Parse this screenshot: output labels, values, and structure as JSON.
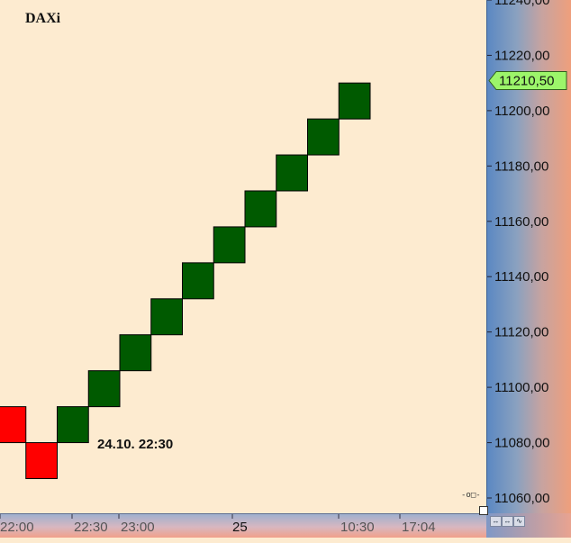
{
  "symbol": "DAXi",
  "annotation": "24.10. 22:30",
  "last_price": "11210,50",
  "colors": {
    "up_box": "#005a00",
    "down_box": "#ff0000",
    "price_marker": "#9cf56a"
  },
  "icons": [
    "link-icon",
    "resize-handle-icon",
    "scroll-left-icon",
    "scroll-right-icon",
    "chart-type-icon"
  ],
  "chart_data": {
    "type": "point-and-figure",
    "box_size": 20,
    "y_ticks": [
      "11240,00",
      "11220,00",
      "11200,00",
      "11180,00",
      "11160,00",
      "11140,00",
      "11120,00",
      "11100,00",
      "11080,00",
      "11060,00"
    ],
    "y_tick_values": [
      11240,
      11220,
      11200,
      11180,
      11160,
      11140,
      11120,
      11100,
      11080,
      11060
    ],
    "x_ticks": [
      "22:00",
      "22:30",
      "23:00",
      "25",
      "10:30",
      "17:04"
    ],
    "ylim": [
      11053,
      11242
    ],
    "columns": [
      {
        "direction": "down",
        "low": 11080,
        "high": 11093
      },
      {
        "direction": "down",
        "low": 11067,
        "high": 11080
      },
      {
        "direction": "up",
        "low": 11080,
        "high": 11093
      },
      {
        "direction": "up",
        "low": 11093,
        "high": 11106
      },
      {
        "direction": "up",
        "low": 11106,
        "high": 11119
      },
      {
        "direction": "up",
        "low": 11119,
        "high": 11132
      },
      {
        "direction": "up",
        "low": 11132,
        "high": 11145
      },
      {
        "direction": "up",
        "low": 11145,
        "high": 11158
      },
      {
        "direction": "up",
        "low": 11158,
        "high": 11171
      },
      {
        "direction": "up",
        "low": 11171,
        "high": 11184
      },
      {
        "direction": "up",
        "low": 11184,
        "high": 11197
      },
      {
        "direction": "up",
        "low": 11197,
        "high": 11210
      }
    ]
  }
}
